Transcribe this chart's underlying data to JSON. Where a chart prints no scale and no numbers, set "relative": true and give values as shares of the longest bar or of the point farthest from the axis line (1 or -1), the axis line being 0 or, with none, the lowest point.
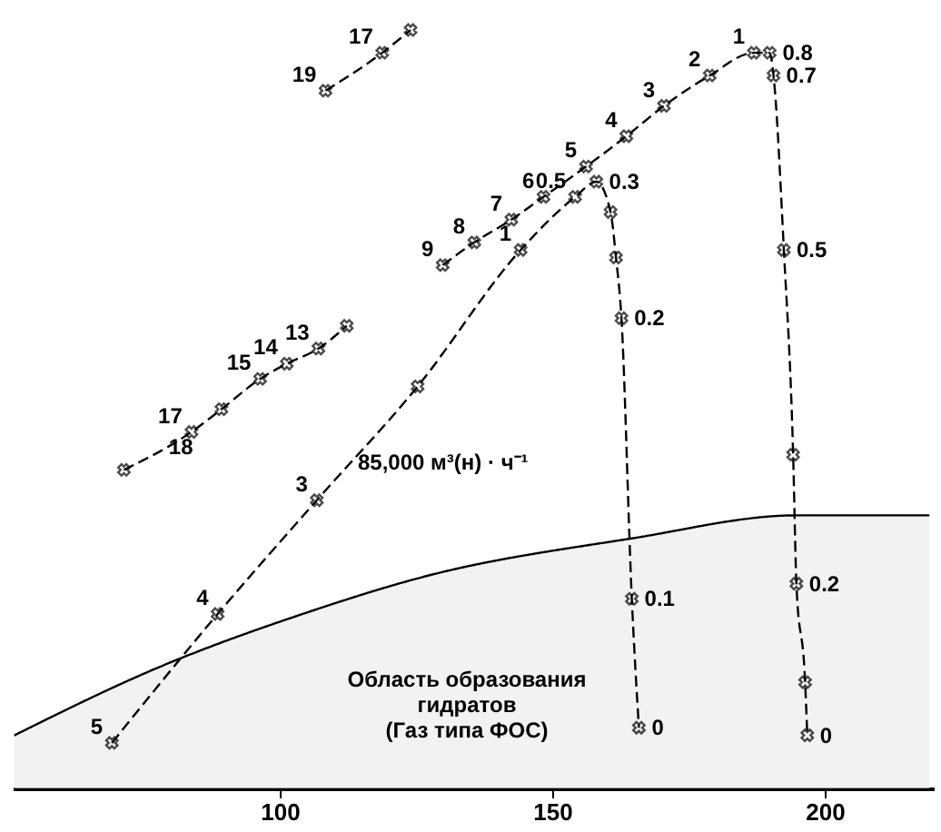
{
  "chart_data": {
    "type": "line",
    "relative": true,
    "grid": false,
    "tick_labels": "x",
    "marker": "cross",
    "xlim": [
      51,
      220
    ],
    "xticks": [
      100,
      150,
      200
    ],
    "series": [
      {
        "color": "#000000",
        "line_style": "dashed",
        "x": [
          129.9,
          135.7,
          142.5,
          148.4,
          156.2,
          163.6,
          170.5,
          178.9,
          187.0,
          189.9,
          190.6,
          192.5,
          194.2,
          194.8,
          196.4,
          196.8
        ],
        "values": [
          0.69,
          0.72,
          0.75,
          0.78,
          0.82,
          0.86,
          0.9,
          0.94,
          0.97,
          0.97,
          0.94,
          0.71,
          0.44,
          0.27,
          0.14,
          0.07
        ]
      },
      {
        "color": "#000000",
        "line_style": "dashed",
        "x": [
          69.2,
          88.6,
          106.8,
          125.3,
          144.2,
          154.2,
          158.1,
          160.7,
          161.7,
          162.7,
          164.6,
          165.9
        ],
        "values": [
          0.06,
          0.23,
          0.38,
          0.53,
          0.71,
          0.78,
          0.8,
          0.76,
          0.7,
          0.62,
          0.25,
          0.08
        ]
      },
      {
        "color": "#000000",
        "line_style": "dashed",
        "x": [
          71.4,
          83.8,
          89.3,
          96.4,
          101.3,
          107.1,
          112.3
        ],
        "values": [
          0.42,
          0.47,
          0.5,
          0.54,
          0.56,
          0.58,
          0.61
        ]
      },
      {
        "color": "#000000",
        "line_style": "dashed",
        "x": [
          108.4,
          118.8,
          124.0
        ],
        "values": [
          0.92,
          0.97,
          1.0
        ]
      },
      {
        "type": "area",
        "color": "#000000",
        "line_style": "solid",
        "marker": "none",
        "x": [
          51.3,
          77.9,
          104.2,
          126.9,
          164.9,
          194.8,
          219.2
        ],
        "values": [
          0.07,
          0.16,
          0.23,
          0.28,
          0.33,
          0.36,
          0.36
        ]
      }
    ],
    "annotations": [
      {
        "text": "9",
        "x": 129.9,
        "y": 0.69
      },
      {
        "text": "8",
        "x": 135.7,
        "y": 0.72
      },
      {
        "text": "7",
        "x": 142.5,
        "y": 0.75
      },
      {
        "text": "6",
        "x": 148.4,
        "y": 0.78
      },
      {
        "text": "5",
        "x": 156.2,
        "y": 0.82
      },
      {
        "text": "4",
        "x": 163.6,
        "y": 0.86
      },
      {
        "text": "3",
        "x": 170.5,
        "y": 0.9
      },
      {
        "text": "2",
        "x": 178.9,
        "y": 0.94
      },
      {
        "text": "1",
        "x": 187.0,
        "y": 0.97
      },
      {
        "text": "0.8",
        "x": 189.9,
        "y": 0.97
      },
      {
        "text": "0.7",
        "x": 190.6,
        "y": 0.94
      },
      {
        "text": "0.5",
        "x": 192.5,
        "y": 0.71
      },
      {
        "text": "0.2",
        "x": 194.8,
        "y": 0.27
      },
      {
        "text": "0",
        "x": 196.8,
        "y": 0.07
      },
      {
        "text": "5",
        "x": 69.2,
        "y": 0.06
      },
      {
        "text": "4",
        "x": 88.6,
        "y": 0.23
      },
      {
        "text": "3",
        "x": 106.8,
        "y": 0.38
      },
      {
        "text": "1",
        "x": 144.2,
        "y": 0.71
      },
      {
        "text": "0.5",
        "x": 154.2,
        "y": 0.78
      },
      {
        "text": "0.3",
        "x": 158.1,
        "y": 0.8
      },
      {
        "text": "0.2",
        "x": 162.7,
        "y": 0.62
      },
      {
        "text": "0.1",
        "x": 164.6,
        "y": 0.25
      },
      {
        "text": "0",
        "x": 165.9,
        "y": 0.08
      },
      {
        "text": "18",
        "x": 77.3,
        "y": 0.45
      },
      {
        "text": "17",
        "x": 83.8,
        "y": 0.47
      },
      {
        "text": "15",
        "x": 96.4,
        "y": 0.54
      },
      {
        "text": "14",
        "x": 101.3,
        "y": 0.56
      },
      {
        "text": "13",
        "x": 107.1,
        "y": 0.58
      },
      {
        "text": "19",
        "x": 108.4,
        "y": 0.92
      },
      {
        "text": "17",
        "x": 118.8,
        "y": 0.97
      },
      {
        "text": "85,000 м³(н) · ч⁻¹",
        "x": 112.0,
        "y": 0.43
      },
      "Область образования\nгидратов\n(Газ типа ФОС)"
    ]
  }
}
